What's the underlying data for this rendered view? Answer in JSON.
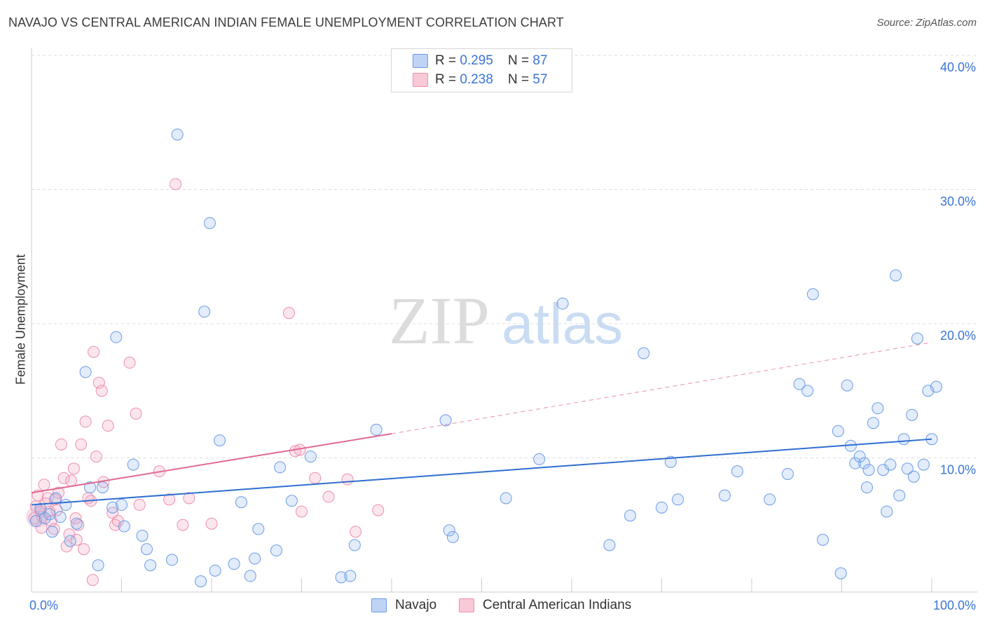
{
  "title": "NAVAJO VS CENTRAL AMERICAN INDIAN FEMALE UNEMPLOYMENT CORRELATION CHART",
  "source": "Source: ZipAtlas.com",
  "watermark": {
    "zip": "ZIP",
    "atlas": "atlas"
  },
  "legend": {
    "navajo": {
      "r_label": "R = ",
      "r_value": "0.295",
      "n_label": "N = ",
      "n_value": "87"
    },
    "cai": {
      "r_label": "R = ",
      "r_value": "0.238",
      "n_label": "N = ",
      "n_value": "57"
    }
  },
  "chart_data": {
    "type": "scatter",
    "title": "NAVAJO VS CENTRAL AMERICAN INDIAN FEMALE UNEMPLOYMENT CORRELATION CHART",
    "xlabel": "",
    "ylabel": "Female Unemployment",
    "xlim": [
      0,
      100
    ],
    "ylim": [
      0,
      40
    ],
    "x_tick_labels": [
      "0.0%",
      "100.0%"
    ],
    "y_tick_labels": [
      "10.0%",
      "20.0%",
      "30.0%",
      "40.0%"
    ],
    "y_ticks": [
      10,
      20,
      30,
      40
    ],
    "grid": true,
    "colors": {
      "navajo": "#6b9be6",
      "navajo_line": "#2f6fd0",
      "cai": "#ef8eab",
      "cai_line": "#e06a93"
    },
    "series": [
      {
        "name": "Navajo",
        "r": 0.295,
        "n": 87,
        "trend": {
          "x0": 0,
          "y0": 6.5,
          "x1": 100,
          "y1": 11.4
        },
        "points": [
          [
            0.5,
            5.3
          ],
          [
            1,
            6.2
          ],
          [
            1.5,
            5.5
          ],
          [
            2,
            5.8
          ],
          [
            2.3,
            4.5
          ],
          [
            2.7,
            7.0
          ],
          [
            3.2,
            5.6
          ],
          [
            3.8,
            6.5
          ],
          [
            4.3,
            3.8
          ],
          [
            5,
            5.1
          ],
          [
            6,
            16.4
          ],
          [
            6.5,
            7.8
          ],
          [
            7.4,
            2.0
          ],
          [
            7.9,
            7.8
          ],
          [
            9,
            6.3
          ],
          [
            9.4,
            19.0
          ],
          [
            10,
            6.5
          ],
          [
            10.3,
            4.9
          ],
          [
            11.3,
            9.5
          ],
          [
            12.3,
            4.2
          ],
          [
            12.8,
            3.2
          ],
          [
            13.2,
            2.0
          ],
          [
            15.6,
            2.4
          ],
          [
            16.2,
            34.1
          ],
          [
            18.8,
            0.8
          ],
          [
            19.2,
            20.9
          ],
          [
            19.8,
            27.5
          ],
          [
            20.4,
            1.6
          ],
          [
            20.9,
            11.3
          ],
          [
            22.5,
            2.1
          ],
          [
            23.3,
            6.7
          ],
          [
            24.3,
            1.2
          ],
          [
            24.8,
            2.5
          ],
          [
            25.2,
            4.7
          ],
          [
            27.2,
            3.1
          ],
          [
            27.6,
            9.3
          ],
          [
            28.9,
            6.8
          ],
          [
            31,
            10.1
          ],
          [
            34.4,
            1.1
          ],
          [
            35.4,
            1.2
          ],
          [
            35.9,
            3.5
          ],
          [
            38.3,
            12.1
          ],
          [
            46,
            12.8
          ],
          [
            46.4,
            4.6
          ],
          [
            46.8,
            4.1
          ],
          [
            52.7,
            7.0
          ],
          [
            56.4,
            9.9
          ],
          [
            59,
            21.5
          ],
          [
            64.2,
            3.5
          ],
          [
            66.5,
            5.7
          ],
          [
            68,
            17.8
          ],
          [
            70,
            6.3
          ],
          [
            71,
            9.7
          ],
          [
            71.8,
            6.9
          ],
          [
            77,
            7.2
          ],
          [
            78.4,
            9.0
          ],
          [
            82,
            6.9
          ],
          [
            84,
            8.8
          ],
          [
            85.3,
            15.5
          ],
          [
            86.2,
            15.0
          ],
          [
            86.8,
            22.2
          ],
          [
            87.9,
            3.9
          ],
          [
            89.6,
            12.0
          ],
          [
            89.9,
            1.4
          ],
          [
            90.6,
            15.4
          ],
          [
            91,
            10.9
          ],
          [
            91.5,
            9.6
          ],
          [
            92,
            10.1
          ],
          [
            92.5,
            9.6
          ],
          [
            92.8,
            7.8
          ],
          [
            93,
            9.1
          ],
          [
            93.5,
            12.6
          ],
          [
            94,
            13.7
          ],
          [
            94.6,
            9.1
          ],
          [
            95,
            6.0
          ],
          [
            95.4,
            9.5
          ],
          [
            96,
            23.6
          ],
          [
            96.4,
            7.2
          ],
          [
            96.9,
            11.4
          ],
          [
            97.3,
            9.2
          ],
          [
            98,
            8.6
          ],
          [
            98.4,
            18.9
          ],
          [
            99.1,
            9.5
          ],
          [
            99.6,
            15.0
          ],
          [
            100,
            11.4
          ],
          [
            100.5,
            15.3
          ],
          [
            97.8,
            13.2
          ]
        ]
      },
      {
        "name": "Central American Indians",
        "r": 0.238,
        "n": 57,
        "trend": {
          "x0": 0,
          "y0": 7.4,
          "x1": 40,
          "y1": 11.8,
          "dash_x1": 100,
          "dash_y1": 18.6
        },
        "points": [
          [
            0.3,
            5.5
          ],
          [
            0.5,
            6.4
          ],
          [
            0.7,
            7.2
          ],
          [
            1,
            6.0
          ],
          [
            1.2,
            5.6
          ],
          [
            1.4,
            8.0
          ],
          [
            1.6,
            6.6
          ],
          [
            1.8,
            7.0
          ],
          [
            2,
            6.0
          ],
          [
            2.2,
            5.3
          ],
          [
            2.5,
            4.7
          ],
          [
            2.8,
            6.1
          ],
          [
            3,
            7.4
          ],
          [
            3.3,
            11.0
          ],
          [
            3.6,
            8.5
          ],
          [
            3.9,
            3.4
          ],
          [
            4.2,
            4.3
          ],
          [
            4.4,
            8.3
          ],
          [
            4.7,
            9.2
          ],
          [
            5,
            3.9
          ],
          [
            5.2,
            5.0
          ],
          [
            5.5,
            11.0
          ],
          [
            5.8,
            3.2
          ],
          [
            6,
            12.7
          ],
          [
            6.3,
            7.0
          ],
          [
            6.6,
            6.8
          ],
          [
            6.9,
            17.9
          ],
          [
            7.2,
            10.1
          ],
          [
            7.5,
            15.6
          ],
          [
            7.8,
            15.0
          ],
          [
            8.5,
            12.4
          ],
          [
            9,
            5.9
          ],
          [
            9.3,
            5.0
          ],
          [
            9.6,
            5.3
          ],
          [
            10.9,
            17.1
          ],
          [
            11.6,
            13.3
          ],
          [
            12,
            6.5
          ],
          [
            14.2,
            9.0
          ],
          [
            15.3,
            6.9
          ],
          [
            16,
            30.4
          ],
          [
            16.8,
            5.0
          ],
          [
            17.5,
            7.0
          ],
          [
            20,
            5.1
          ],
          [
            28.6,
            20.8
          ],
          [
            29.3,
            10.5
          ],
          [
            29.8,
            10.6
          ],
          [
            30,
            6.0
          ],
          [
            31.5,
            8.5
          ],
          [
            33,
            7.1
          ],
          [
            35.1,
            8.4
          ],
          [
            38.5,
            6.1
          ],
          [
            36,
            4.5
          ],
          [
            2.6,
            6.9
          ],
          [
            4.9,
            5.5
          ],
          [
            6.8,
            0.9
          ],
          [
            8,
            8.2
          ],
          [
            1.1,
            4.8
          ]
        ]
      }
    ]
  },
  "bottom_legend": {
    "navajo": "Navajo",
    "cai": "Central American Indians"
  }
}
